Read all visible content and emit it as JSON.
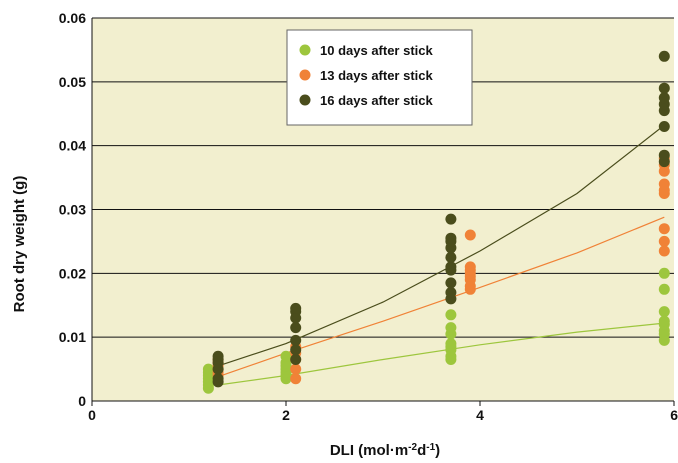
{
  "chart_data": {
    "type": "scatter",
    "title": "",
    "xlabel": "DLI (mol·m",
    "xlabel_sup1": "-2",
    "xlabel_mid": "d",
    "xlabel_sup2": "-1",
    "xlabel_end": ")",
    "ylabel": "Root dry weight (g)",
    "xlim": [
      0,
      6
    ],
    "ylim": [
      0,
      0.06
    ],
    "xticks": [
      "0",
      "2",
      "4",
      "6"
    ],
    "yticks": [
      "0",
      "0.01",
      "0.02",
      "0.03",
      "0.04",
      "0.05",
      "0.06"
    ],
    "grid": "horizontal",
    "legend_position": "top-center",
    "background_color": "#f2efcf",
    "series": [
      {
        "name": "10 days after stick",
        "color": "#9dc63d",
        "points": [
          [
            1.2,
            0.002
          ],
          [
            1.2,
            0.0025
          ],
          [
            1.2,
            0.003
          ],
          [
            1.2,
            0.0035
          ],
          [
            1.2,
            0.004
          ],
          [
            1.2,
            0.0045
          ],
          [
            1.2,
            0.005
          ],
          [
            2.0,
            0.0035
          ],
          [
            2.0,
            0.004
          ],
          [
            2.0,
            0.0045
          ],
          [
            2.0,
            0.005
          ],
          [
            2.0,
            0.0055
          ],
          [
            2.0,
            0.006
          ],
          [
            2.0,
            0.007
          ],
          [
            3.7,
            0.0065
          ],
          [
            3.7,
            0.007
          ],
          [
            3.7,
            0.008
          ],
          [
            3.7,
            0.0085
          ],
          [
            3.7,
            0.009
          ],
          [
            3.7,
            0.0105
          ],
          [
            3.7,
            0.0115
          ],
          [
            3.7,
            0.0135
          ],
          [
            5.9,
            0.0095
          ],
          [
            5.9,
            0.0105
          ],
          [
            5.9,
            0.011
          ],
          [
            5.9,
            0.012
          ],
          [
            5.9,
            0.0125
          ],
          [
            5.9,
            0.014
          ],
          [
            5.9,
            0.0175
          ],
          [
            5.9,
            0.02
          ]
        ],
        "trend": [
          [
            1.3,
            0.0025
          ],
          [
            2.0,
            0.004
          ],
          [
            3.0,
            0.0065
          ],
          [
            4.0,
            0.0088
          ],
          [
            5.0,
            0.0108
          ],
          [
            5.9,
            0.0122
          ]
        ]
      },
      {
        "name": "13 days after stick",
        "color": "#f08237",
        "points": [
          [
            1.3,
            0.004
          ],
          [
            1.3,
            0.0045
          ],
          [
            1.3,
            0.005
          ],
          [
            1.3,
            0.0055
          ],
          [
            1.3,
            0.006
          ],
          [
            1.3,
            0.0065
          ],
          [
            2.1,
            0.0035
          ],
          [
            2.1,
            0.005
          ],
          [
            2.1,
            0.0065
          ],
          [
            2.1,
            0.0075
          ],
          [
            2.1,
            0.0085
          ],
          [
            3.9,
            0.0175
          ],
          [
            3.9,
            0.018
          ],
          [
            3.9,
            0.019
          ],
          [
            3.9,
            0.0195
          ],
          [
            3.9,
            0.02
          ],
          [
            3.9,
            0.0205
          ],
          [
            3.9,
            0.021
          ],
          [
            3.9,
            0.026
          ],
          [
            5.9,
            0.0235
          ],
          [
            5.9,
            0.025
          ],
          [
            5.9,
            0.027
          ],
          [
            5.9,
            0.0325
          ],
          [
            5.9,
            0.033
          ],
          [
            5.9,
            0.034
          ],
          [
            5.9,
            0.036
          ],
          [
            5.9,
            0.037
          ],
          [
            5.9,
            0.038
          ]
        ],
        "trend": [
          [
            1.3,
            0.0038
          ],
          [
            2.0,
            0.0075
          ],
          [
            3.0,
            0.0125
          ],
          [
            4.0,
            0.0178
          ],
          [
            5.0,
            0.0232
          ],
          [
            5.9,
            0.0288
          ]
        ]
      },
      {
        "name": "16 days after stick",
        "color": "#4a4d1c",
        "points": [
          [
            1.3,
            0.003
          ],
          [
            1.3,
            0.0035
          ],
          [
            1.3,
            0.005
          ],
          [
            1.3,
            0.006
          ],
          [
            1.3,
            0.0065
          ],
          [
            1.3,
            0.007
          ],
          [
            2.1,
            0.0065
          ],
          [
            2.1,
            0.008
          ],
          [
            2.1,
            0.0095
          ],
          [
            2.1,
            0.0115
          ],
          [
            2.1,
            0.013
          ],
          [
            2.1,
            0.014
          ],
          [
            2.1,
            0.0145
          ],
          [
            3.7,
            0.016
          ],
          [
            3.7,
            0.017
          ],
          [
            3.7,
            0.0185
          ],
          [
            3.7,
            0.0205
          ],
          [
            3.7,
            0.021
          ],
          [
            3.7,
            0.0225
          ],
          [
            3.7,
            0.024
          ],
          [
            3.7,
            0.025
          ],
          [
            3.7,
            0.0255
          ],
          [
            3.7,
            0.0285
          ],
          [
            5.9,
            0.0375
          ],
          [
            5.9,
            0.0385
          ],
          [
            5.9,
            0.043
          ],
          [
            5.9,
            0.0455
          ],
          [
            5.9,
            0.0465
          ],
          [
            5.9,
            0.0475
          ],
          [
            5.9,
            0.049
          ],
          [
            5.9,
            0.054
          ]
        ],
        "trend": [
          [
            1.3,
            0.0055
          ],
          [
            2.0,
            0.009
          ],
          [
            3.0,
            0.0155
          ],
          [
            4.0,
            0.0235
          ],
          [
            5.0,
            0.0325
          ],
          [
            5.9,
            0.0432
          ]
        ]
      }
    ]
  }
}
